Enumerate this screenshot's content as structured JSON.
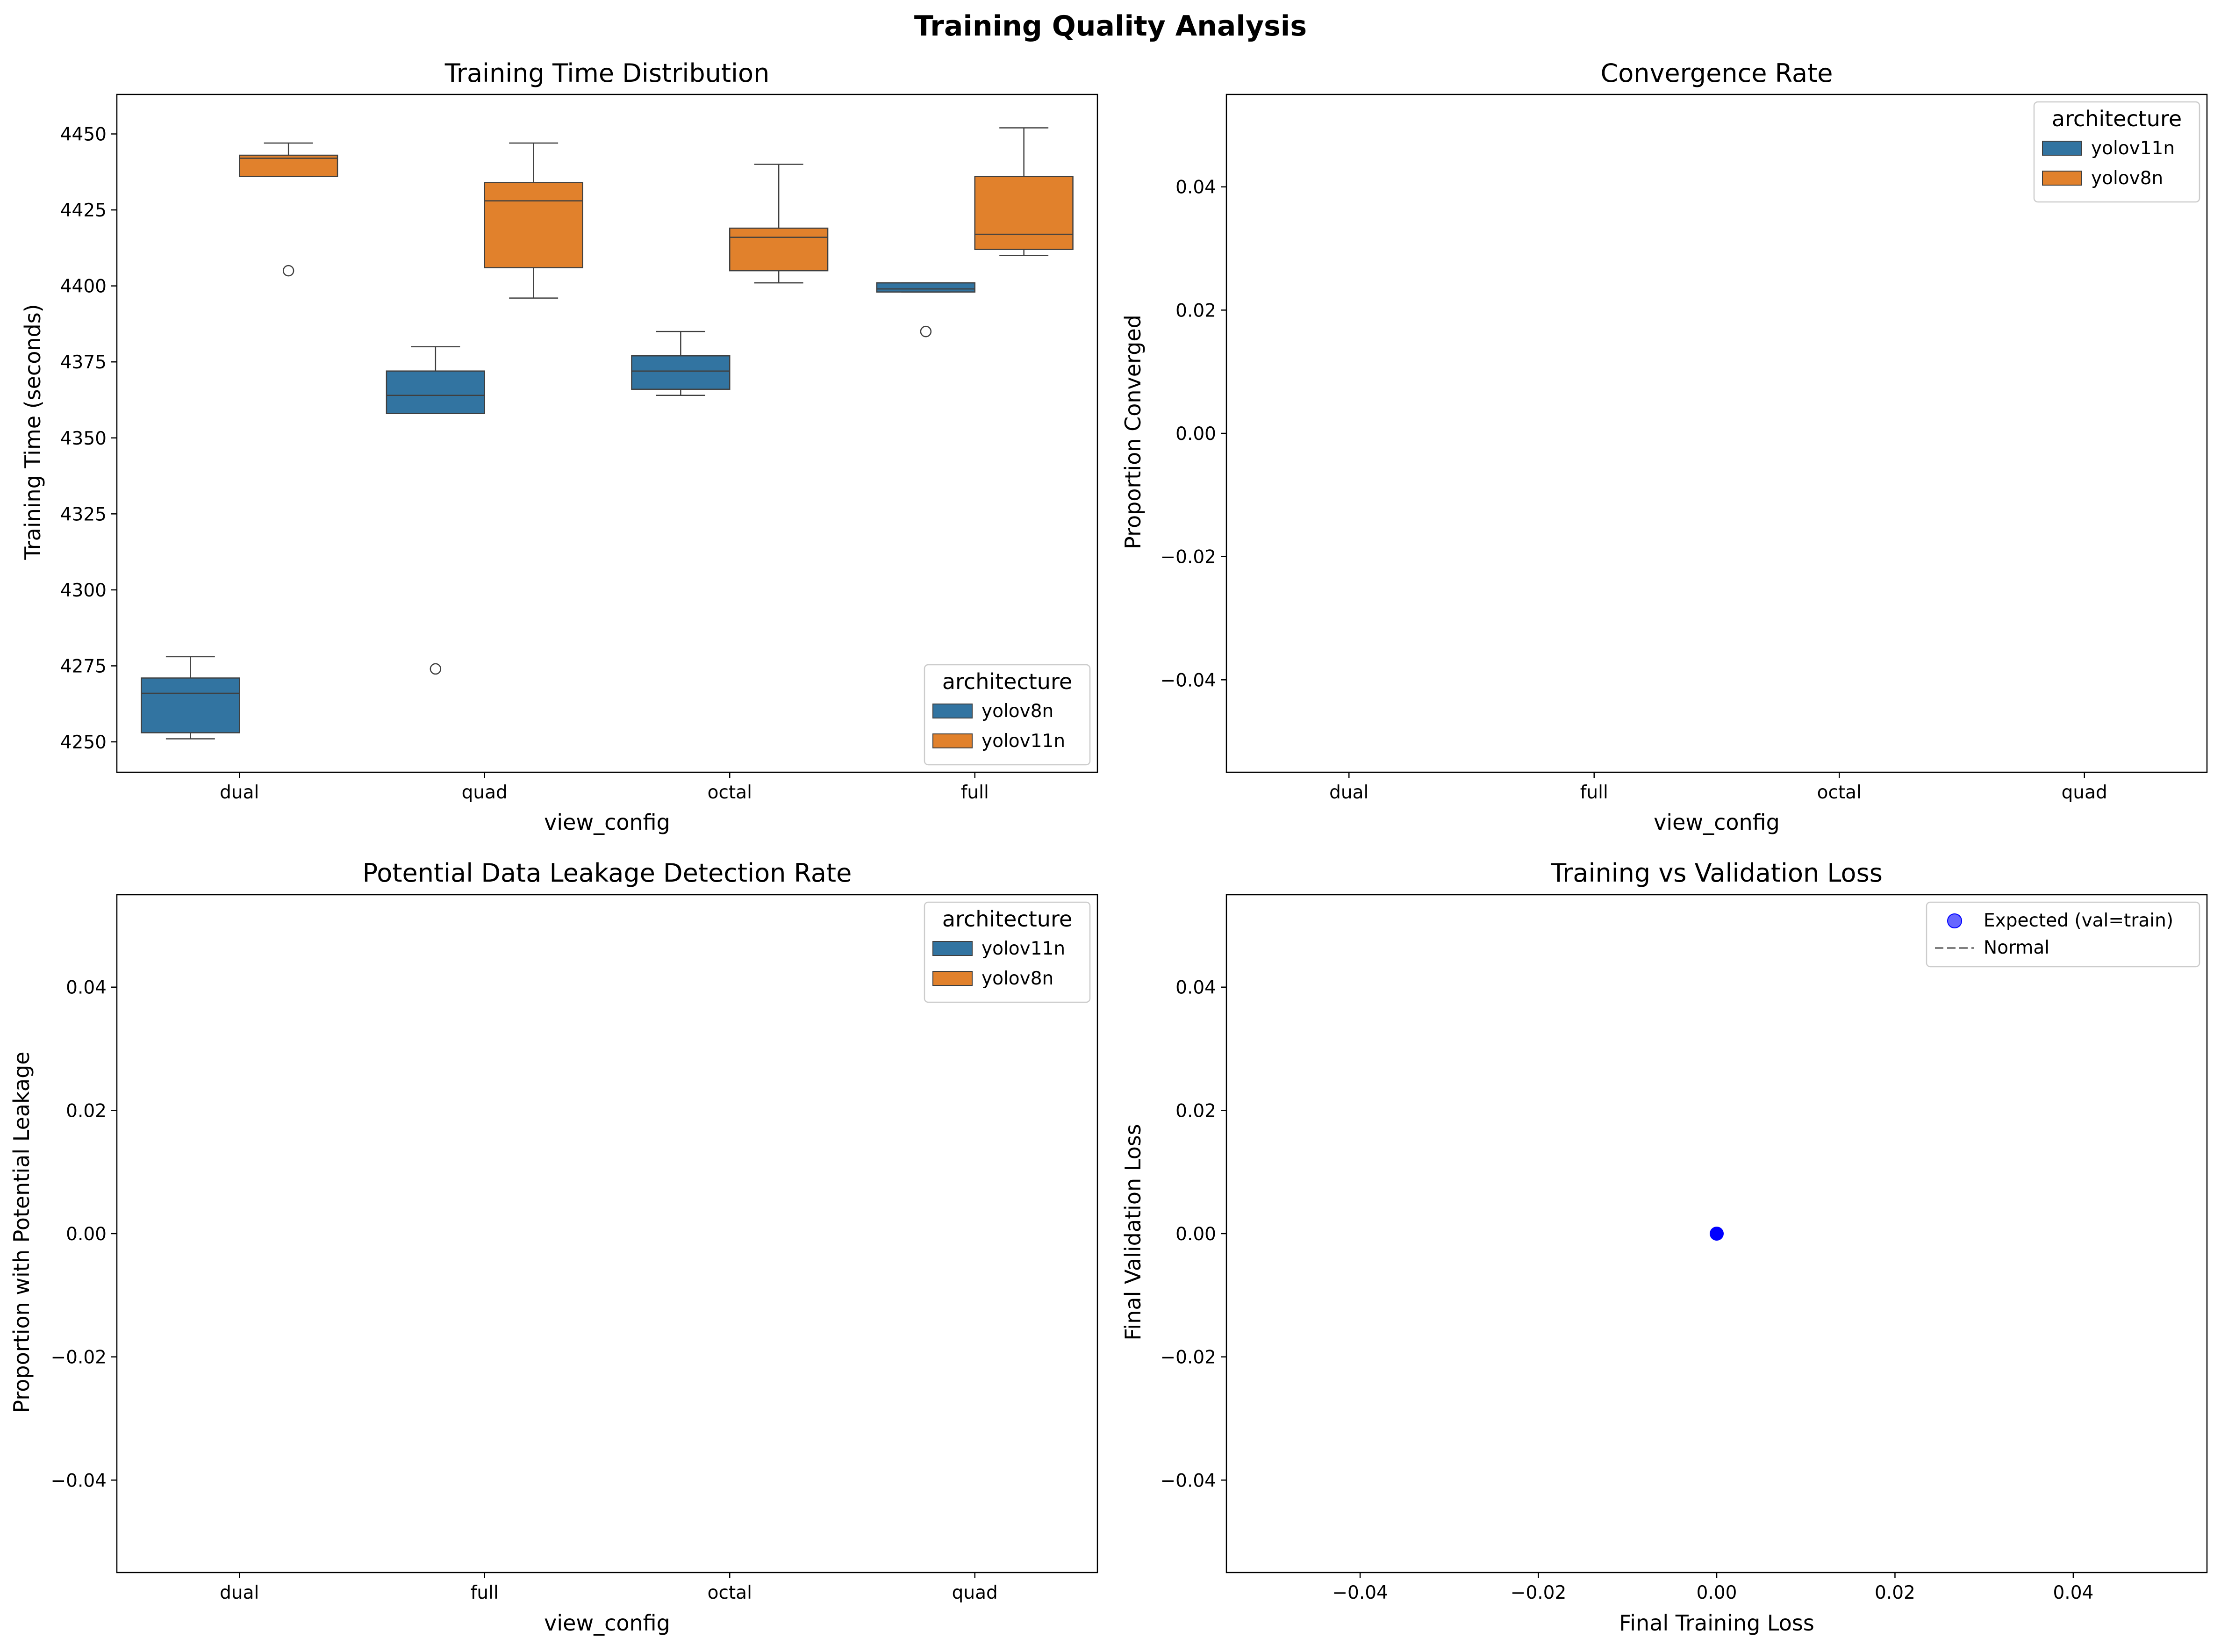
{
  "figure": {
    "title": "Training Quality Analysis"
  },
  "colors": {
    "blue": "#3274a1",
    "orange": "#e1812c",
    "marker_blue": "#0000ff",
    "dash_gray": "#808080"
  },
  "chart_data": [
    {
      "id": "training-time",
      "type": "box",
      "title": "Training Time Distribution",
      "xlabel": "view_config",
      "ylabel": "Training Time (seconds)",
      "categories": [
        "dual",
        "quad",
        "octal",
        "full"
      ],
      "ylim": [
        4240,
        4463
      ],
      "yticks": [
        4250,
        4275,
        4300,
        4325,
        4350,
        4375,
        4400,
        4425,
        4450
      ],
      "legend": {
        "title": "architecture",
        "placement": "lower-right",
        "entries": [
          "yolov8n",
          "yolov11n"
        ]
      },
      "series": [
        {
          "name": "yolov8n",
          "color": "#3274a1",
          "boxes": [
            {
              "q1": 4253,
              "median": 4266,
              "q3": 4271,
              "whislo": 4251,
              "whishi": 4278,
              "fliers": []
            },
            {
              "q1": 4358,
              "median": 4364,
              "q3": 4372,
              "whislo": 4358,
              "whishi": 4380,
              "fliers": [
                4274
              ]
            },
            {
              "q1": 4366,
              "median": 4372,
              "q3": 4377,
              "whislo": 4364,
              "whishi": 4385,
              "fliers": []
            },
            {
              "q1": 4398,
              "median": 4399,
              "q3": 4401,
              "whislo": 4398,
              "whishi": 4401,
              "fliers": [
                4385
              ]
            }
          ]
        },
        {
          "name": "yolov11n",
          "color": "#e1812c",
          "boxes": [
            {
              "q1": 4436,
              "median": 4442,
              "q3": 4443,
              "whislo": 4436,
              "whishi": 4447,
              "fliers": [
                4405
              ]
            },
            {
              "q1": 4406,
              "median": 4428,
              "q3": 4434,
              "whislo": 4396,
              "whishi": 4447,
              "fliers": []
            },
            {
              "q1": 4405,
              "median": 4416,
              "q3": 4419,
              "whislo": 4401,
              "whishi": 4440,
              "fliers": []
            },
            {
              "q1": 4412,
              "median": 4417,
              "q3": 4436,
              "whislo": 4410,
              "whishi": 4452,
              "fliers": []
            }
          ]
        }
      ]
    },
    {
      "id": "convergence-rate",
      "type": "bar",
      "title": "Convergence Rate",
      "xlabel": "view_config",
      "ylabel": "Proportion Converged",
      "categories": [
        "dual",
        "full",
        "octal",
        "quad"
      ],
      "ylim": [
        -0.055,
        0.055
      ],
      "yticks": [
        -0.04,
        -0.02,
        0.0,
        0.02,
        0.04
      ],
      "legend": {
        "title": "architecture",
        "placement": "upper-right",
        "entries": [
          "yolov11n",
          "yolov8n"
        ]
      },
      "series": [
        {
          "name": "yolov11n",
          "color": "#3274a1",
          "values": [
            0,
            0,
            0,
            0
          ]
        },
        {
          "name": "yolov8n",
          "color": "#e1812c",
          "values": [
            0,
            0,
            0,
            0
          ]
        }
      ]
    },
    {
      "id": "leakage-rate",
      "type": "bar",
      "title": "Potential Data Leakage Detection Rate",
      "xlabel": "view_config",
      "ylabel": "Proportion with Potential Leakage",
      "categories": [
        "dual",
        "full",
        "octal",
        "quad"
      ],
      "ylim": [
        -0.055,
        0.055
      ],
      "yticks": [
        -0.04,
        -0.02,
        0.0,
        0.02,
        0.04
      ],
      "legend": {
        "title": "architecture",
        "placement": "upper-right",
        "entries": [
          "yolov11n",
          "yolov8n"
        ]
      },
      "series": [
        {
          "name": "yolov11n",
          "color": "#3274a1",
          "values": [
            0,
            0,
            0,
            0
          ]
        },
        {
          "name": "yolov8n",
          "color": "#e1812c",
          "values": [
            0,
            0,
            0,
            0
          ]
        }
      ]
    },
    {
      "id": "train-vs-val",
      "type": "scatter",
      "title": "Training vs Validation Loss",
      "xlabel": "Final Training Loss",
      "ylabel": "Final Validation Loss",
      "xlim": [
        -0.055,
        0.055
      ],
      "ylim": [
        -0.055,
        0.055
      ],
      "xticks": [
        -0.04,
        -0.02,
        0.0,
        0.02,
        0.04
      ],
      "yticks": [
        -0.04,
        -0.02,
        0.0,
        0.02,
        0.04
      ],
      "legend": {
        "placement": "upper-right",
        "entries": [
          "Expected (val=train)",
          "Normal"
        ]
      },
      "points": [
        {
          "x": 0.0,
          "y": 0.0
        }
      ]
    }
  ]
}
